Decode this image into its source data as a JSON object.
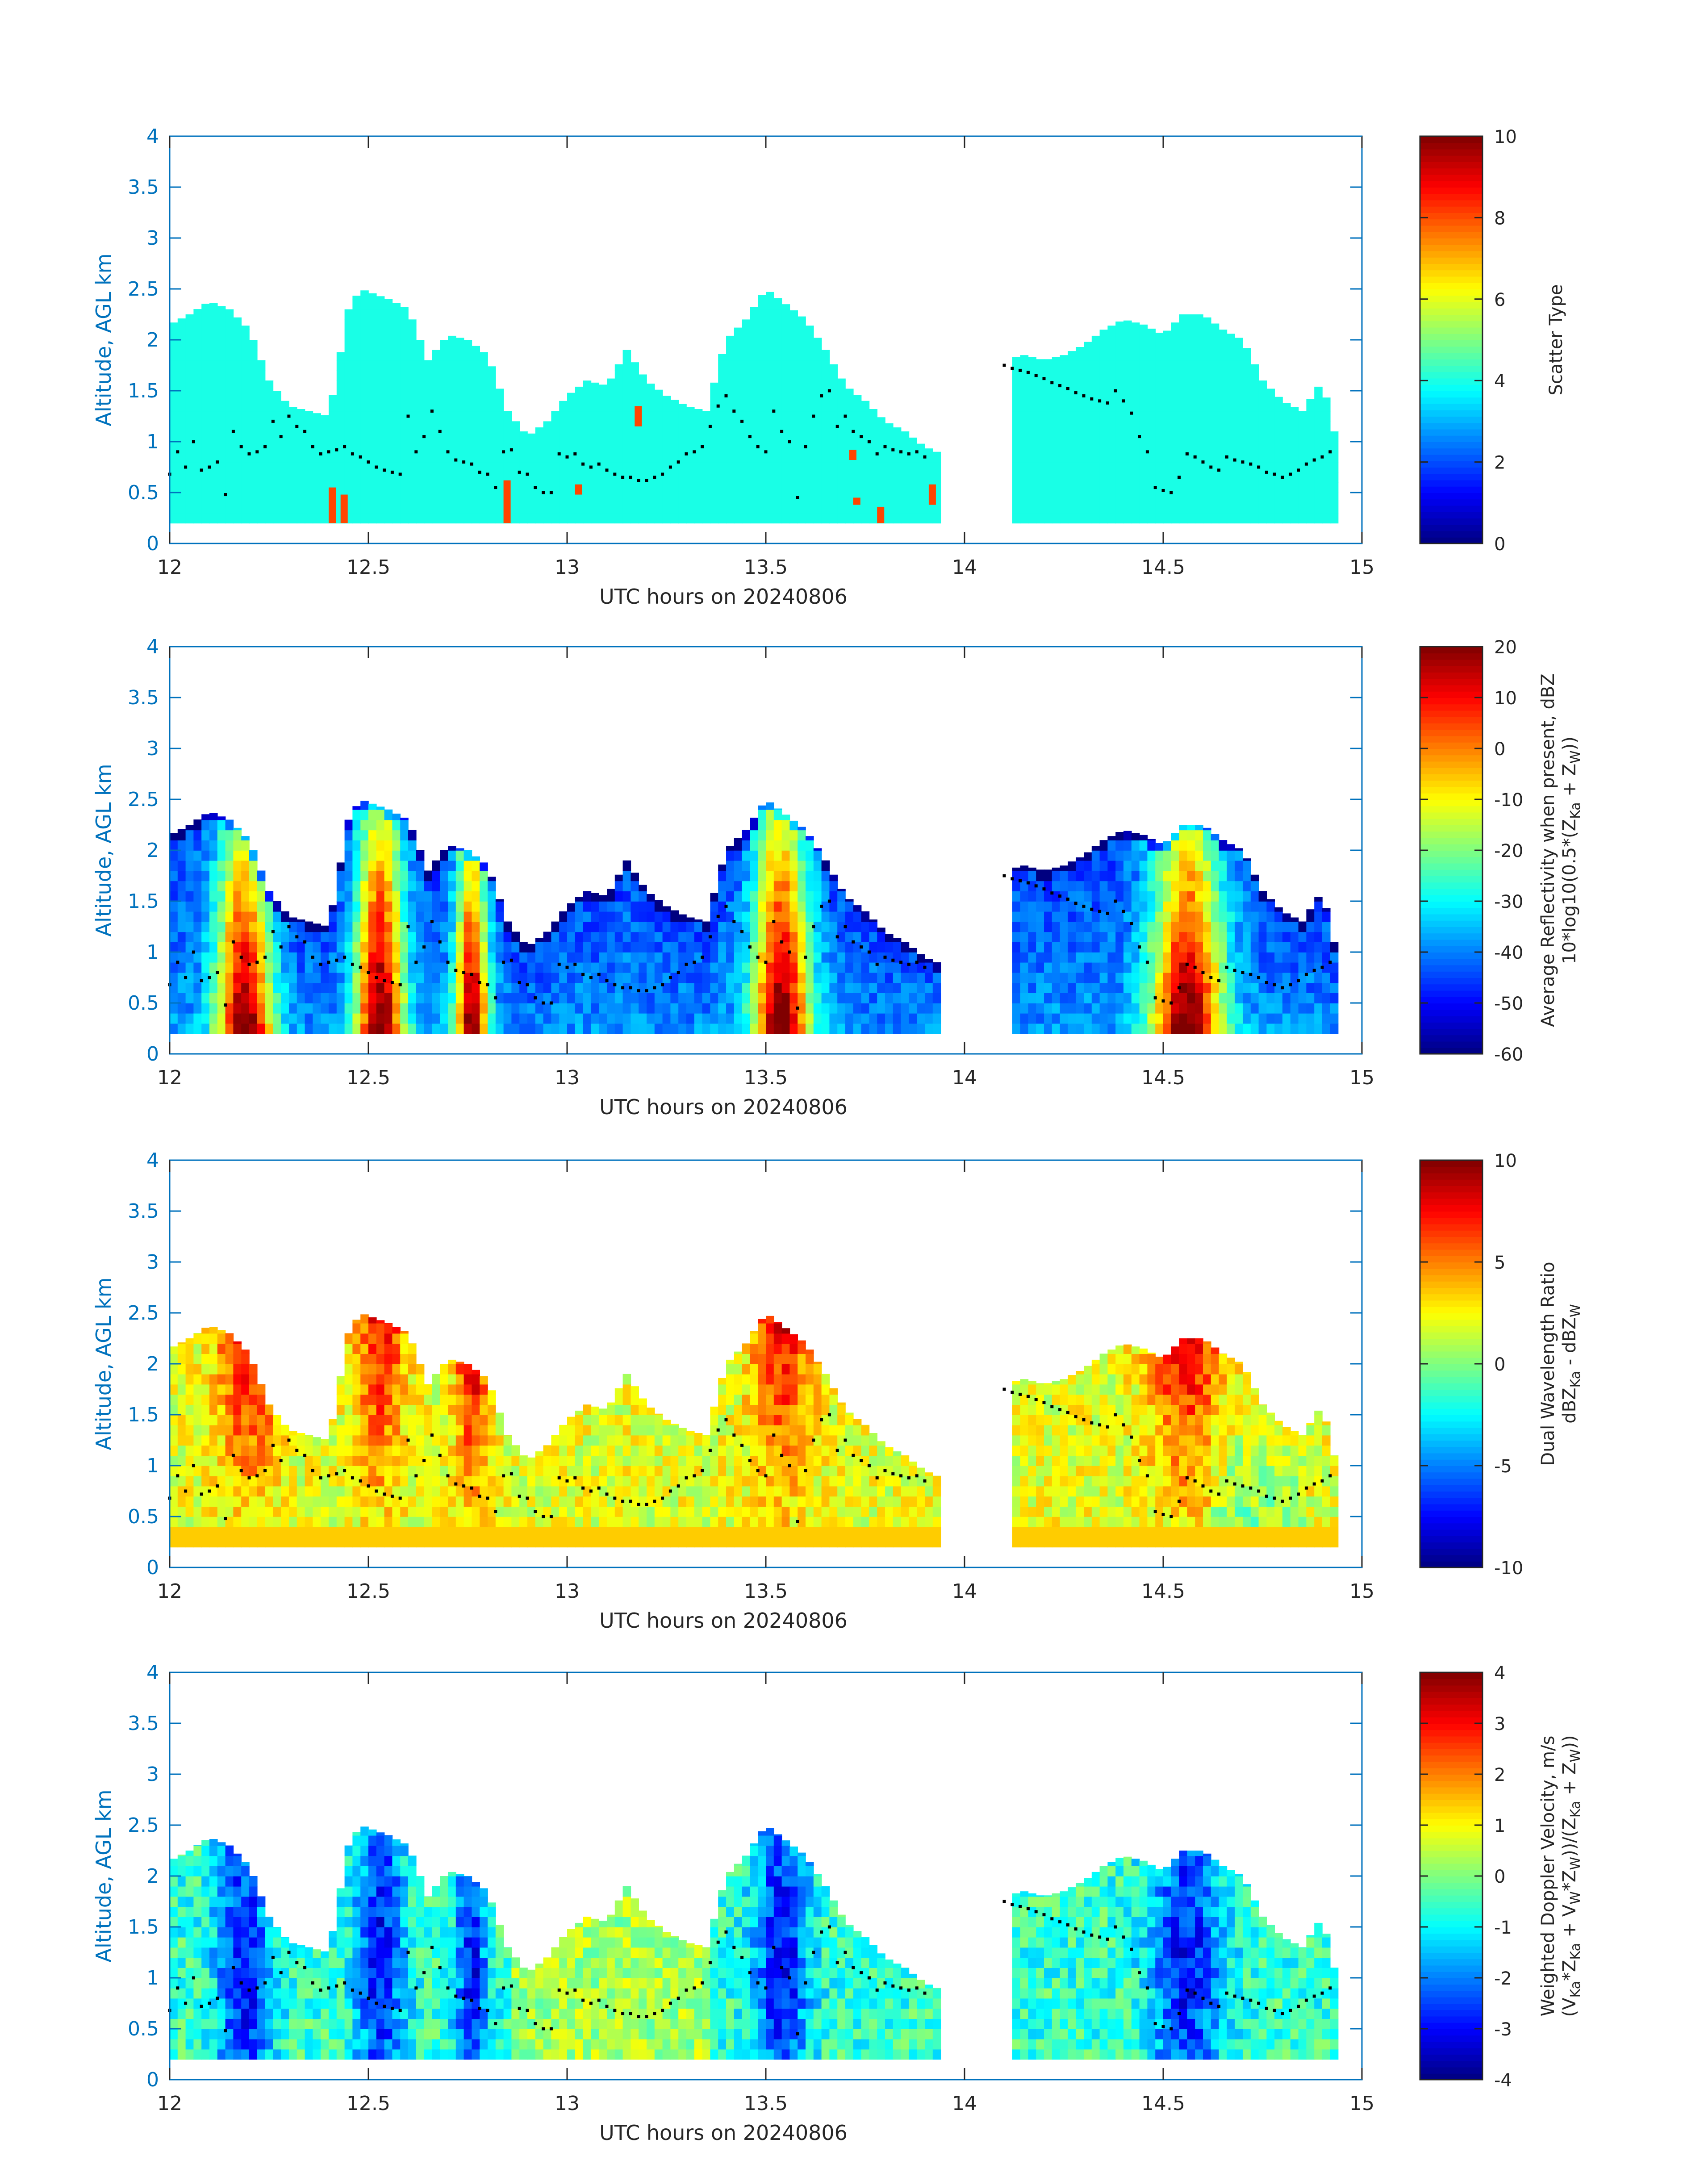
{
  "colors": {
    "axis_blue": "#0072bd",
    "text_dark": "#262626",
    "marker": "#000000",
    "scatter_fill": "#19ffe6",
    "scatter_alt": "#ff4500"
  },
  "chart_data": [
    {
      "type": "heatmap",
      "xlabel": "UTC hours on 20240806",
      "ylabel": "Altitude, AGL km",
      "colorbar_label": [
        "Scatter Type"
      ],
      "xlim": [
        12,
        15
      ],
      "ylim": [
        0,
        4
      ],
      "x_ticks": [
        "12",
        "12.5",
        "13",
        "13.5",
        "14",
        "14.5",
        "15"
      ],
      "y_ticks": [
        "0",
        "0.5",
        "1",
        "1.5",
        "2",
        "2.5",
        "3",
        "3.5",
        "4"
      ],
      "clim": [
        0,
        10
      ],
      "colorbar_ticks": [
        "0",
        "2",
        "4",
        "6",
        "8",
        "10"
      ],
      "field": "scatter"
    },
    {
      "type": "heatmap",
      "xlabel": "UTC hours on 20240806",
      "ylabel": "Altitude, AGL km",
      "colorbar_label": [
        "Average Reflectivity when present, dBZ",
        "10*log10(0.5*(Z",
        "Ka",
        " + Z",
        "W",
        "))"
      ],
      "xlim": [
        12,
        15
      ],
      "ylim": [
        0,
        4
      ],
      "x_ticks": [
        "12",
        "12.5",
        "13",
        "13.5",
        "14",
        "14.5",
        "15"
      ],
      "y_ticks": [
        "0",
        "0.5",
        "1",
        "1.5",
        "2",
        "2.5",
        "3",
        "3.5",
        "4"
      ],
      "clim": [
        -60,
        20
      ],
      "colorbar_ticks": [
        "-60",
        "-50",
        "-40",
        "-30",
        "-20",
        "-10",
        "0",
        "10",
        "20"
      ],
      "field": "reflectivity"
    },
    {
      "type": "heatmap",
      "xlabel": "UTC hours on 20240806",
      "ylabel": "Altitude, AGL km",
      "colorbar_label": [
        "Dual Wavelength Ratio",
        "dBZ",
        "Ka",
        " - dBZ",
        "W"
      ],
      "xlim": [
        12,
        15
      ],
      "ylim": [
        0,
        4
      ],
      "x_ticks": [
        "12",
        "12.5",
        "13",
        "13.5",
        "14",
        "14.5",
        "15"
      ],
      "y_ticks": [
        "0",
        "0.5",
        "1",
        "1.5",
        "2",
        "2.5",
        "3",
        "3.5",
        "4"
      ],
      "clim": [
        -10,
        10
      ],
      "colorbar_ticks": [
        "-10",
        "-5",
        "0",
        "5",
        "10"
      ],
      "field": "dwr"
    },
    {
      "type": "heatmap",
      "xlabel": "UTC hours on 20240806",
      "ylabel": "Altitude, AGL km",
      "colorbar_label": [
        "Weighted Doppler Velocity, m/s",
        "(V",
        "Ka",
        "*Z",
        "Ka",
        " + V",
        "W",
        "*Z",
        "W",
        "))/(Z",
        "Ka",
        " + Z",
        "W",
        "))"
      ],
      "xlim": [
        12,
        15
      ],
      "ylim": [
        0,
        4
      ],
      "x_ticks": [
        "12",
        "12.5",
        "13",
        "13.5",
        "14",
        "14.5",
        "15"
      ],
      "y_ticks": [
        "0",
        "0.5",
        "1",
        "1.5",
        "2",
        "2.5",
        "3",
        "3.5",
        "4"
      ],
      "clim": [
        -4,
        4
      ],
      "colorbar_ticks": [
        "-4",
        "-3",
        "-2",
        "-1",
        "0",
        "1",
        "2",
        "3",
        "4"
      ],
      "field": "velocity"
    }
  ],
  "cloud_top_km": [
    [
      12.0,
      2.15
    ],
    [
      12.05,
      2.25
    ],
    [
      12.1,
      2.38
    ],
    [
      12.15,
      2.3
    ],
    [
      12.2,
      2.1
    ],
    [
      12.25,
      1.6
    ],
    [
      12.3,
      1.35
    ],
    [
      12.35,
      1.3
    ],
    [
      12.4,
      1.25
    ],
    [
      12.45,
      2.3
    ],
    [
      12.48,
      2.5
    ],
    [
      12.55,
      2.4
    ],
    [
      12.6,
      2.3
    ],
    [
      12.65,
      1.8
    ],
    [
      12.7,
      2.05
    ],
    [
      12.75,
      2.0
    ],
    [
      12.8,
      1.85
    ],
    [
      12.85,
      1.3
    ],
    [
      12.9,
      1.05
    ],
    [
      12.95,
      1.2
    ],
    [
      13.0,
      1.45
    ],
    [
      13.05,
      1.6
    ],
    [
      13.1,
      1.55
    ],
    [
      13.15,
      1.9
    ],
    [
      13.2,
      1.6
    ],
    [
      13.25,
      1.45
    ],
    [
      13.3,
      1.35
    ],
    [
      13.35,
      1.3
    ],
    [
      13.4,
      2.0
    ],
    [
      13.45,
      2.2
    ],
    [
      13.5,
      2.5
    ],
    [
      13.55,
      2.35
    ],
    [
      13.6,
      2.2
    ],
    [
      13.65,
      1.9
    ],
    [
      13.7,
      1.55
    ],
    [
      13.75,
      1.4
    ],
    [
      13.8,
      1.2
    ],
    [
      13.85,
      1.1
    ],
    [
      13.9,
      0.95
    ],
    [
      13.93,
      0.9
    ]
  ],
  "cloud_top_km_2": [
    [
      14.1,
      1.8
    ],
    [
      14.15,
      1.85
    ],
    [
      14.2,
      1.8
    ],
    [
      14.25,
      1.85
    ],
    [
      14.3,
      1.95
    ],
    [
      14.35,
      2.1
    ],
    [
      14.4,
      2.2
    ],
    [
      14.45,
      2.15
    ],
    [
      14.5,
      2.05
    ],
    [
      14.55,
      2.25
    ],
    [
      14.6,
      2.25
    ],
    [
      14.65,
      2.1
    ],
    [
      14.7,
      2.0
    ],
    [
      14.75,
      1.6
    ],
    [
      14.8,
      1.4
    ],
    [
      14.85,
      1.3
    ],
    [
      14.9,
      1.6
    ],
    [
      14.93,
      1.1
    ]
  ],
  "marker_dots": [
    [
      12.0,
      0.68
    ],
    [
      12.02,
      0.9
    ],
    [
      12.04,
      0.75
    ],
    [
      12.06,
      1.0
    ],
    [
      12.08,
      0.72
    ],
    [
      12.1,
      0.75
    ],
    [
      12.12,
      0.8
    ],
    [
      12.14,
      0.48
    ],
    [
      12.16,
      1.1
    ],
    [
      12.18,
      0.95
    ],
    [
      12.2,
      0.88
    ],
    [
      12.22,
      0.9
    ],
    [
      12.24,
      0.95
    ],
    [
      12.26,
      1.2
    ],
    [
      12.28,
      1.05
    ],
    [
      12.3,
      1.25
    ],
    [
      12.32,
      1.15
    ],
    [
      12.34,
      1.1
    ],
    [
      12.36,
      0.95
    ],
    [
      12.38,
      0.88
    ],
    [
      12.4,
      0.9
    ],
    [
      12.42,
      0.92
    ],
    [
      12.44,
      0.95
    ],
    [
      12.46,
      0.88
    ],
    [
      12.48,
      0.85
    ],
    [
      12.5,
      0.8
    ],
    [
      12.52,
      0.75
    ],
    [
      12.54,
      0.72
    ],
    [
      12.56,
      0.7
    ],
    [
      12.58,
      0.68
    ],
    [
      12.6,
      1.25
    ],
    [
      12.62,
      0.9
    ],
    [
      12.64,
      1.05
    ],
    [
      12.66,
      1.3
    ],
    [
      12.68,
      1.1
    ],
    [
      12.7,
      0.9
    ],
    [
      12.72,
      0.82
    ],
    [
      12.74,
      0.8
    ],
    [
      12.76,
      0.78
    ],
    [
      12.78,
      0.7
    ],
    [
      12.8,
      0.68
    ],
    [
      12.82,
      0.55
    ],
    [
      12.84,
      0.9
    ],
    [
      12.86,
      0.92
    ],
    [
      12.88,
      0.7
    ],
    [
      12.9,
      0.68
    ],
    [
      12.92,
      0.55
    ],
    [
      12.94,
      0.5
    ],
    [
      12.96,
      0.5
    ],
    [
      12.98,
      0.88
    ],
    [
      13.0,
      0.85
    ],
    [
      13.02,
      0.88
    ],
    [
      13.04,
      0.78
    ],
    [
      13.06,
      0.75
    ],
    [
      13.08,
      0.78
    ],
    [
      13.1,
      0.72
    ],
    [
      13.12,
      0.68
    ],
    [
      13.14,
      0.65
    ],
    [
      13.16,
      0.65
    ],
    [
      13.18,
      0.62
    ],
    [
      13.2,
      0.62
    ],
    [
      13.22,
      0.65
    ],
    [
      13.24,
      0.68
    ],
    [
      13.26,
      0.75
    ],
    [
      13.28,
      0.8
    ],
    [
      13.3,
      0.88
    ],
    [
      13.32,
      0.9
    ],
    [
      13.34,
      0.95
    ],
    [
      13.36,
      1.15
    ],
    [
      13.38,
      1.35
    ],
    [
      13.4,
      1.45
    ],
    [
      13.42,
      1.3
    ],
    [
      13.44,
      1.2
    ],
    [
      13.46,
      1.05
    ],
    [
      13.48,
      0.95
    ],
    [
      13.5,
      0.9
    ],
    [
      13.52,
      1.3
    ],
    [
      13.54,
      1.1
    ],
    [
      13.56,
      1.0
    ],
    [
      13.58,
      0.45
    ],
    [
      13.6,
      0.95
    ],
    [
      13.62,
      1.25
    ],
    [
      13.64,
      1.45
    ],
    [
      13.66,
      1.5
    ],
    [
      13.68,
      1.15
    ],
    [
      13.7,
      1.25
    ],
    [
      13.72,
      1.1
    ],
    [
      13.74,
      1.05
    ],
    [
      13.76,
      1.0
    ],
    [
      13.78,
      0.88
    ],
    [
      13.8,
      0.95
    ],
    [
      13.82,
      0.92
    ],
    [
      13.84,
      0.9
    ],
    [
      13.86,
      0.88
    ],
    [
      13.88,
      0.9
    ],
    [
      13.9,
      0.85
    ],
    [
      14.1,
      1.75
    ],
    [
      14.12,
      1.72
    ],
    [
      14.14,
      1.7
    ],
    [
      14.16,
      1.68
    ],
    [
      14.18,
      1.65
    ],
    [
      14.2,
      1.62
    ],
    [
      14.22,
      1.58
    ],
    [
      14.24,
      1.55
    ],
    [
      14.26,
      1.52
    ],
    [
      14.28,
      1.48
    ],
    [
      14.3,
      1.45
    ],
    [
      14.32,
      1.42
    ],
    [
      14.34,
      1.4
    ],
    [
      14.36,
      1.38
    ],
    [
      14.38,
      1.5
    ],
    [
      14.4,
      1.4
    ],
    [
      14.42,
      1.28
    ],
    [
      14.44,
      1.05
    ],
    [
      14.46,
      0.9
    ],
    [
      14.48,
      0.55
    ],
    [
      14.5,
      0.52
    ],
    [
      14.52,
      0.5
    ],
    [
      14.54,
      0.65
    ],
    [
      14.56,
      0.88
    ],
    [
      14.58,
      0.85
    ],
    [
      14.6,
      0.8
    ],
    [
      14.62,
      0.75
    ],
    [
      14.64,
      0.72
    ],
    [
      14.66,
      0.85
    ],
    [
      14.68,
      0.82
    ],
    [
      14.7,
      0.8
    ],
    [
      14.72,
      0.78
    ],
    [
      14.74,
      0.75
    ],
    [
      14.76,
      0.7
    ],
    [
      14.78,
      0.68
    ],
    [
      14.8,
      0.65
    ],
    [
      14.82,
      0.68
    ],
    [
      14.84,
      0.72
    ],
    [
      14.86,
      0.78
    ],
    [
      14.88,
      0.82
    ],
    [
      14.9,
      0.85
    ],
    [
      14.92,
      0.9
    ]
  ]
}
